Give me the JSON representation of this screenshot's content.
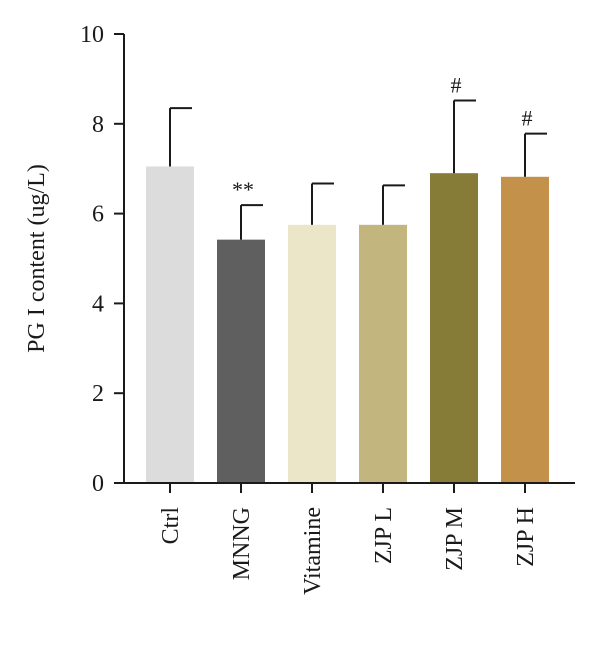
{
  "chart_data": {
    "type": "bar",
    "title": "",
    "xlabel": "",
    "ylabel": "PG I content (ug/L)",
    "ylim": [
      0,
      10
    ],
    "yticks": [
      0,
      2,
      4,
      6,
      8,
      10
    ],
    "tick_labels": [
      "0",
      "2",
      "4",
      "6",
      "8",
      "10"
    ],
    "grid": false,
    "categories": [
      "Ctrl",
      "MNNG",
      "Vitamine",
      "ZJP L",
      "ZJP M",
      "ZJP H"
    ],
    "values": [
      7.05,
      5.42,
      5.75,
      5.75,
      6.9,
      6.82
    ],
    "errors": [
      1.3,
      0.77,
      0.92,
      0.88,
      1.62,
      0.96
    ],
    "annotations": [
      "",
      "**",
      "",
      "",
      "#",
      "#"
    ],
    "colors": [
      "#dcdcdc",
      "#5f5f5f",
      "#ece6c8",
      "#c2b67e",
      "#867b37",
      "#c4914b"
    ]
  }
}
